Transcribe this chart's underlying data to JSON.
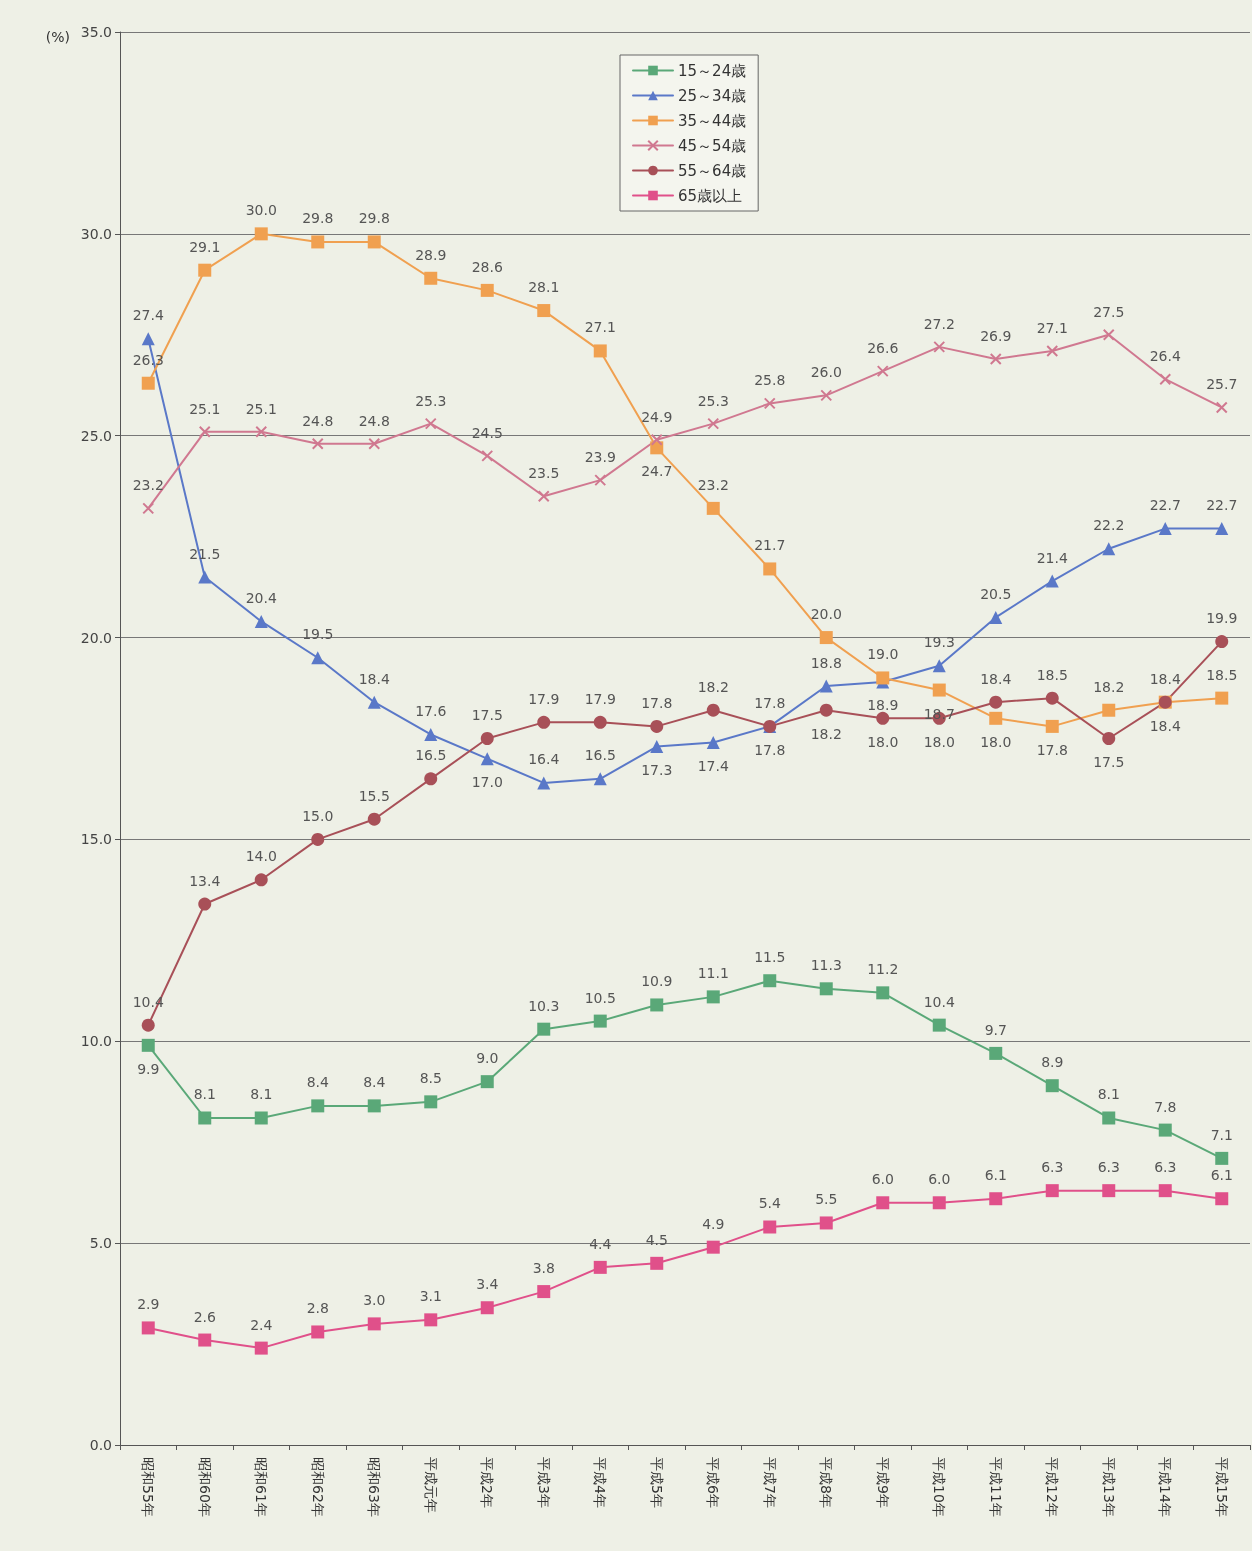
{
  "chart_data": {
    "type": "line",
    "ylabel": "(%)",
    "categories": [
      "昭和55年",
      "昭和60年",
      "昭和61年",
      "昭和62年",
      "昭和63年",
      "平成元年",
      "平成2年",
      "平成3年",
      "平成4年",
      "平成5年",
      "平成6年",
      "平成7年",
      "平成8年",
      "平成9年",
      "平成10年",
      "平成11年",
      "平成12年",
      "平成13年",
      "平成14年",
      "平成15年"
    ],
    "series": [
      {
        "name": "15～24歳",
        "color": "#5aa878",
        "marker": "square",
        "values": [
          9.9,
          8.1,
          8.1,
          8.4,
          8.4,
          8.5,
          9.0,
          10.3,
          10.5,
          10.9,
          11.1,
          11.5,
          11.3,
          11.2,
          10.4,
          9.7,
          8.9,
          8.1,
          7.8,
          7.1
        ],
        "value_labels": [
          "9.9",
          "8.1",
          "8.1",
          "8.4",
          "8.4",
          "8.5",
          "9.0",
          "10.3",
          "10.5",
          "10.9",
          "11.1",
          "11.5",
          "11.3",
          "11.2",
          "10.4",
          "9.7",
          "8.9",
          "8.1",
          "7.8",
          "7.1"
        ]
      },
      {
        "name": "25～34歳",
        "color": "#5a78c8",
        "marker": "triangle",
        "values": [
          27.4,
          21.5,
          20.4,
          19.5,
          18.4,
          17.6,
          17.0,
          16.4,
          16.5,
          17.3,
          17.4,
          17.8,
          18.8,
          18.9,
          19.3,
          20.5,
          21.4,
          22.2,
          22.7,
          22.7
        ],
        "value_labels": [
          "27.4",
          "21.5",
          "20.4",
          "19.5",
          "18.4",
          "17.6",
          "17.0",
          "16.4",
          "16.5",
          "17.3",
          "17.4",
          "17.8",
          "18.8",
          "18.9",
          "19.3",
          "20.5",
          "21.4",
          "22.2",
          "22.7",
          "22.7"
        ]
      },
      {
        "name": "35～44歳",
        "color": "#f0a050",
        "marker": "square",
        "values": [
          26.3,
          29.1,
          30.0,
          29.8,
          29.8,
          28.9,
          28.6,
          28.1,
          27.1,
          24.7,
          23.2,
          21.7,
          20.0,
          19.0,
          18.7,
          18.0,
          17.8,
          18.2,
          18.4,
          18.5
        ],
        "value_labels": [
          "26.3",
          "29.1",
          "30.0",
          "29.8",
          "29.8",
          "28.9",
          "28.6",
          "28.1",
          "27.1",
          "24.7",
          "23.2",
          "21.7",
          "20.0",
          "19.0",
          "18.7",
          "18.0",
          "17.8",
          "18.2",
          "18.4",
          "18.5"
        ]
      },
      {
        "name": "45～54歳",
        "color": "#d07890",
        "marker": "cross",
        "values": [
          23.2,
          25.1,
          25.1,
          24.8,
          24.8,
          25.3,
          24.5,
          23.5,
          23.9,
          24.9,
          25.3,
          25.8,
          26.0,
          26.6,
          27.2,
          26.9,
          27.1,
          27.5,
          26.4,
          25.7
        ],
        "value_labels": [
          "23.2",
          "25.1",
          "25.1",
          "24.8",
          "24.8",
          "25.3",
          "24.5",
          "23.5",
          "23.9",
          "24.9",
          "25.3",
          "25.8",
          "26.0",
          "26.6",
          "27.2",
          "26.9",
          "27.1",
          "27.5",
          "26.4",
          "25.7"
        ]
      },
      {
        "name": "55～64歳",
        "color": "#a85058",
        "marker": "circle",
        "values": [
          10.4,
          13.4,
          14.0,
          15.0,
          15.5,
          16.5,
          17.5,
          17.9,
          17.9,
          17.8,
          18.2,
          17.8,
          18.2,
          18.0,
          18.0,
          18.4,
          18.5,
          17.5,
          18.4,
          19.9
        ],
        "value_labels": [
          "10.4",
          "13.4",
          "14.0",
          "15.0",
          "15.5",
          "16.5",
          "17.5",
          "17.9",
          "17.9",
          "17.8",
          "18.2",
          "17.8",
          "18.2",
          "18.0",
          "18.0",
          "18.4",
          "18.5",
          "17.5",
          "18.4",
          "19.9"
        ]
      },
      {
        "name": "65歳以上",
        "color": "#e0508a",
        "marker": "square",
        "values": [
          2.9,
          2.6,
          2.4,
          2.8,
          3.0,
          3.1,
          3.4,
          3.8,
          4.4,
          4.5,
          4.9,
          5.4,
          5.5,
          6.0,
          6.0,
          6.1,
          6.3,
          6.3,
          6.3,
          6.1
        ],
        "value_labels": [
          "2.9",
          "2.6",
          "2.4",
          "2.8",
          "3.0",
          "3.1",
          "3.4",
          "3.8",
          "4.4",
          "4.5",
          "4.9",
          "5.4",
          "5.5",
          "6.0",
          "6.0",
          "6.1",
          "6.3",
          "6.3",
          "6.3",
          "6.1"
        ]
      }
    ],
    "ylim": [
      0,
      35
    ],
    "yticks": [
      {
        "value": 0,
        "label": "0.0"
      },
      {
        "value": 5,
        "label": "5.0"
      },
      {
        "value": 10,
        "label": "10.0"
      },
      {
        "value": 15,
        "label": "15.0"
      },
      {
        "value": 20,
        "label": "20.0"
      },
      {
        "value": 25,
        "label": "25.0"
      },
      {
        "value": 30,
        "label": "30.0"
      },
      {
        "value": 35,
        "label": "35.0"
      }
    ],
    "grid": "y",
    "legend": "top",
    "line_style": "solid"
  }
}
